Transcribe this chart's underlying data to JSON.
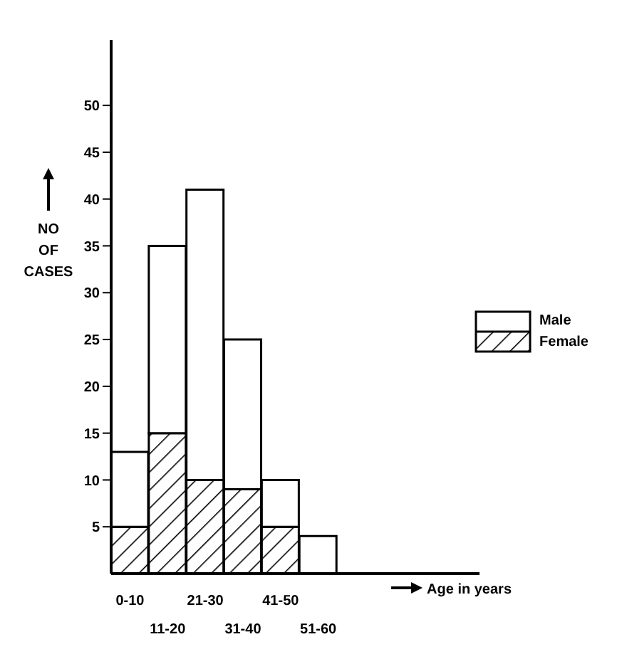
{
  "chart_data": {
    "type": "bar",
    "stacked": true,
    "categories": [
      "0-10",
      "11-20",
      "21-30",
      "31-40",
      "41-50",
      "51-60"
    ],
    "series": [
      {
        "name": "Female",
        "color": "#000000",
        "values": [
          5,
          15,
          10,
          9,
          5,
          0
        ]
      },
      {
        "name": "Male",
        "color": "#ffffff",
        "values": [
          8,
          20,
          31,
          16,
          5,
          4
        ]
      }
    ],
    "ylim": [
      0,
      57
    ],
    "yticks": [
      5,
      10,
      15,
      20,
      25,
      30,
      35,
      40,
      45,
      50
    ],
    "annotations": [
      "Age in years"
    ],
    "ylabel": "NO OF CASES",
    "legend": "right"
  }
}
